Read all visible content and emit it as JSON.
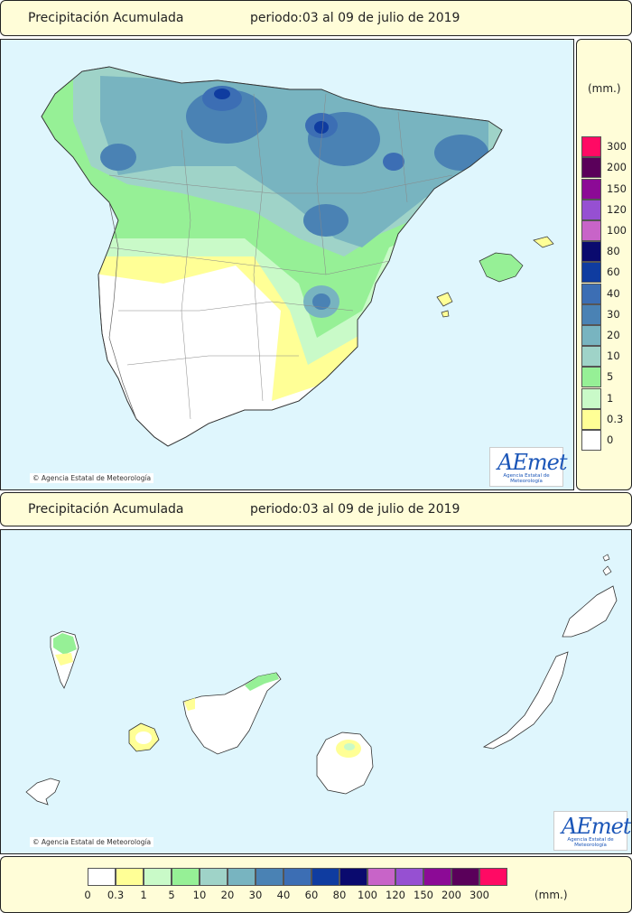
{
  "top_title": {
    "label": "Precipitación Acumulada",
    "period": "periodo:03 al 09 de julio de 2019"
  },
  "mid_title": {
    "label": "Precipitación Acumulada",
    "period": "periodo:03 al 09 de julio de 2019"
  },
  "credit": "Agencia Estatal de Meteorología",
  "credit_symbol": "©",
  "logo": {
    "brand": "AEmet",
    "subtitle": "Agencia Estatal de Meteorología"
  },
  "legend": {
    "unit": "(mm.)",
    "levels": [
      "0",
      "0.3",
      "1",
      "5",
      "10",
      "20",
      "30",
      "40",
      "60",
      "80",
      "100",
      "120",
      "150",
      "200",
      "300"
    ],
    "colors": [
      "#ffffff",
      "#ffff96",
      "#c9fac8",
      "#96f096",
      "#9fd3c8",
      "#78b4c0",
      "#4a82b4",
      "#3c6eb4",
      "#0f3ca0",
      "#0a0a6e",
      "#c864c8",
      "#9650d2",
      "#8c0a96",
      "#5a005a",
      "#ff0a64"
    ]
  },
  "colors": {
    "sea": "#dff6fd",
    "land": "#ffffff",
    "panel": "#fffdd8"
  }
}
